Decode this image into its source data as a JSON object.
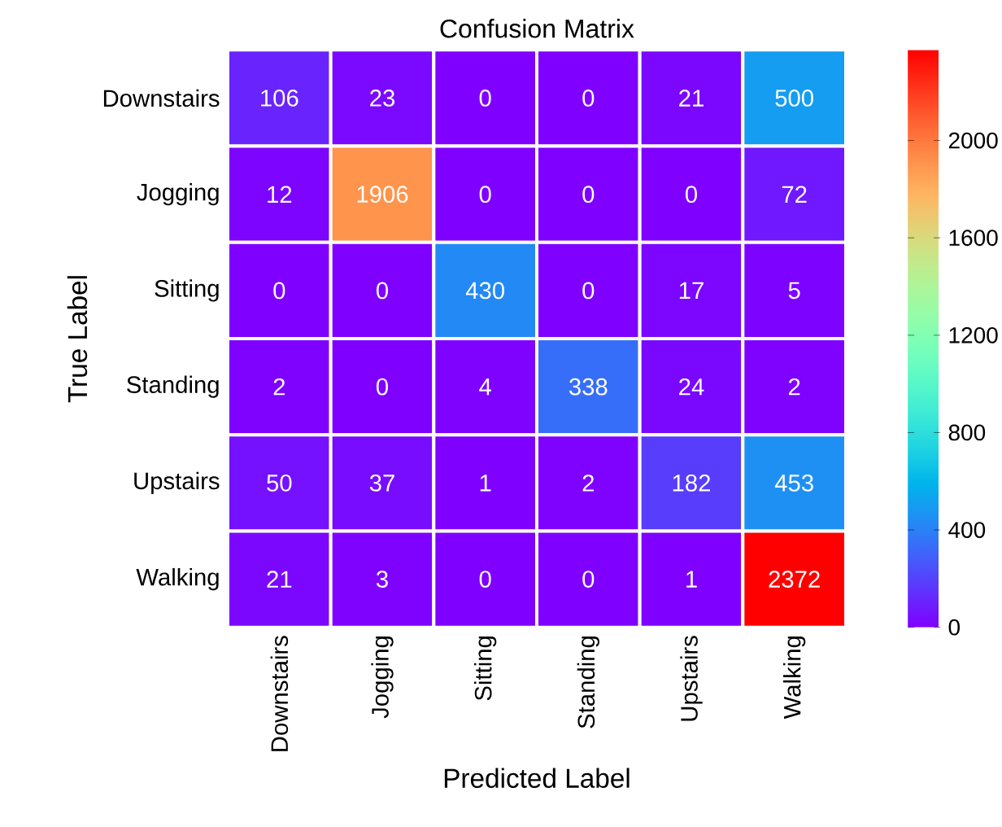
{
  "chart_data": {
    "type": "heatmap",
    "title": "Confusion Matrix",
    "xlabel": "Predicted Label",
    "ylabel": "True Label",
    "categories": [
      "Downstairs",
      "Jogging",
      "Sitting",
      "Standing",
      "Upstairs",
      "Walking"
    ],
    "y_categories": [
      "Downstairs",
      "Jogging",
      "Sitting",
      "Standing",
      "Upstairs",
      "Walking"
    ],
    "cells": [
      [
        106,
        23,
        0,
        0,
        21,
        500
      ],
      [
        12,
        1906,
        0,
        0,
        0,
        72
      ],
      [
        0,
        0,
        430,
        0,
        17,
        5
      ],
      [
        2,
        0,
        4,
        338,
        24,
        2
      ],
      [
        50,
        37,
        1,
        2,
        182,
        453
      ],
      [
        21,
        3,
        0,
        0,
        1,
        2372
      ]
    ],
    "data_labels": true,
    "clim": [
      0,
      2372
    ],
    "cticks": [
      0,
      400,
      800,
      1200,
      1600,
      2000
    ]
  }
}
